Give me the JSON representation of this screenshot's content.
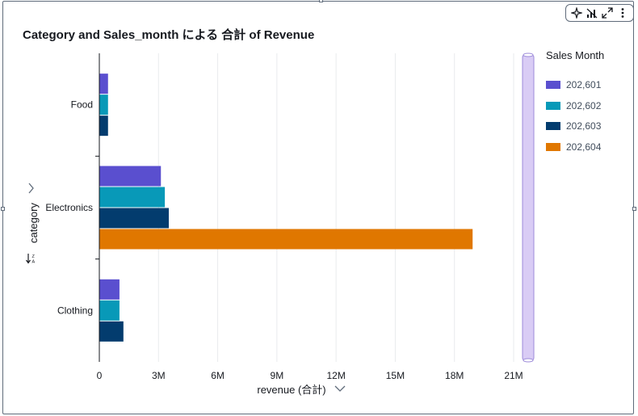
{
  "chart_data": {
    "type": "bar",
    "orientation": "horizontal",
    "title": "Category and Sales_month による 合計 of Revenue",
    "xlabel": "revenue (合計)",
    "ylabel": "category",
    "categories": [
      "Food",
      "Electronics",
      "Clothing"
    ],
    "series": [
      {
        "name": "202,601",
        "color": "#5a4fcf",
        "values": [
          0.42,
          3.1,
          1.0
        ]
      },
      {
        "name": "202,602",
        "color": "#0899b8",
        "values": [
          0.42,
          3.3,
          1.0
        ]
      },
      {
        "name": "202,603",
        "color": "#033c6e",
        "values": [
          0.42,
          3.5,
          1.2
        ]
      },
      {
        "name": "202,604",
        "color": "#e07700",
        "values": [
          null,
          18.9,
          null
        ]
      }
    ],
    "xlim": [
      0,
      21
    ],
    "xticks": [
      "0",
      "3M",
      "6M",
      "9M",
      "12M",
      "15M",
      "18M",
      "21M"
    ],
    "grid": true,
    "legend_title": "Sales Month",
    "legend_position": "right"
  },
  "colors": {
    "scrollbar": "#d9ccf5"
  },
  "icons": [
    "sparkle-icon",
    "signal-icon",
    "expand-icon",
    "more-vertical-icon",
    "chevron-right-icon",
    "sort-icon",
    "chevron-down-icon"
  ]
}
